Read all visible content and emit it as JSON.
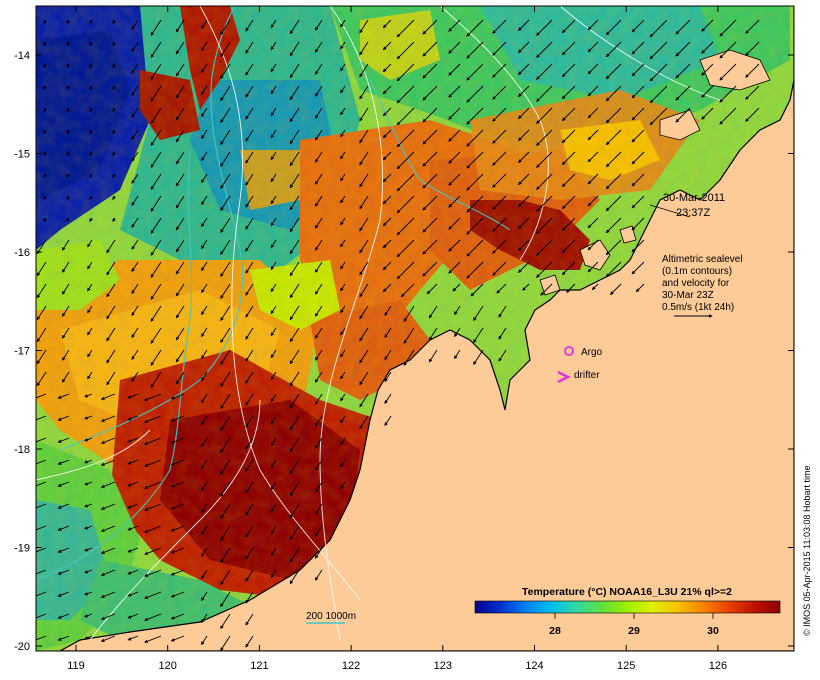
{
  "map": {
    "lon_ticks": [
      "119",
      "120",
      "121",
      "122",
      "123",
      "124",
      "125",
      "126"
    ],
    "lat_ticks": [
      "-14",
      "-15",
      "-16",
      "-17",
      "-18",
      "-19",
      "-20"
    ],
    "land_color": "#fccb98",
    "date": "30-Mar-2011",
    "time": "23:37Z",
    "legend_text": [
      "Altimetric sealevel",
      "(0.1m contours)",
      "and velocity for",
      "30-Mar 23Z",
      "0.5m/s (1kt 24h)"
    ],
    "argo_label": "Argo",
    "drifter_label": "drifter",
    "isobath_label": "200  1000m",
    "argo_color": "#e030e0",
    "drifter_color": "#e030e0",
    "isobath_color": "#40c8c8"
  },
  "colorbar": {
    "title": "Temperature (°C) NOAA16_L3U 21% ql>=2",
    "ticks": [
      "28",
      "29",
      "30"
    ],
    "colors": [
      "#000090",
      "#0030d0",
      "#0080f0",
      "#00c0f0",
      "#30d8a0",
      "#60e040",
      "#a0f000",
      "#e0f000",
      "#f8c000",
      "#f88000",
      "#e84000",
      "#c01000",
      "#900000"
    ]
  },
  "credit": "© IMOS 05-Apr-2015 11:03:08 Hobart time"
}
